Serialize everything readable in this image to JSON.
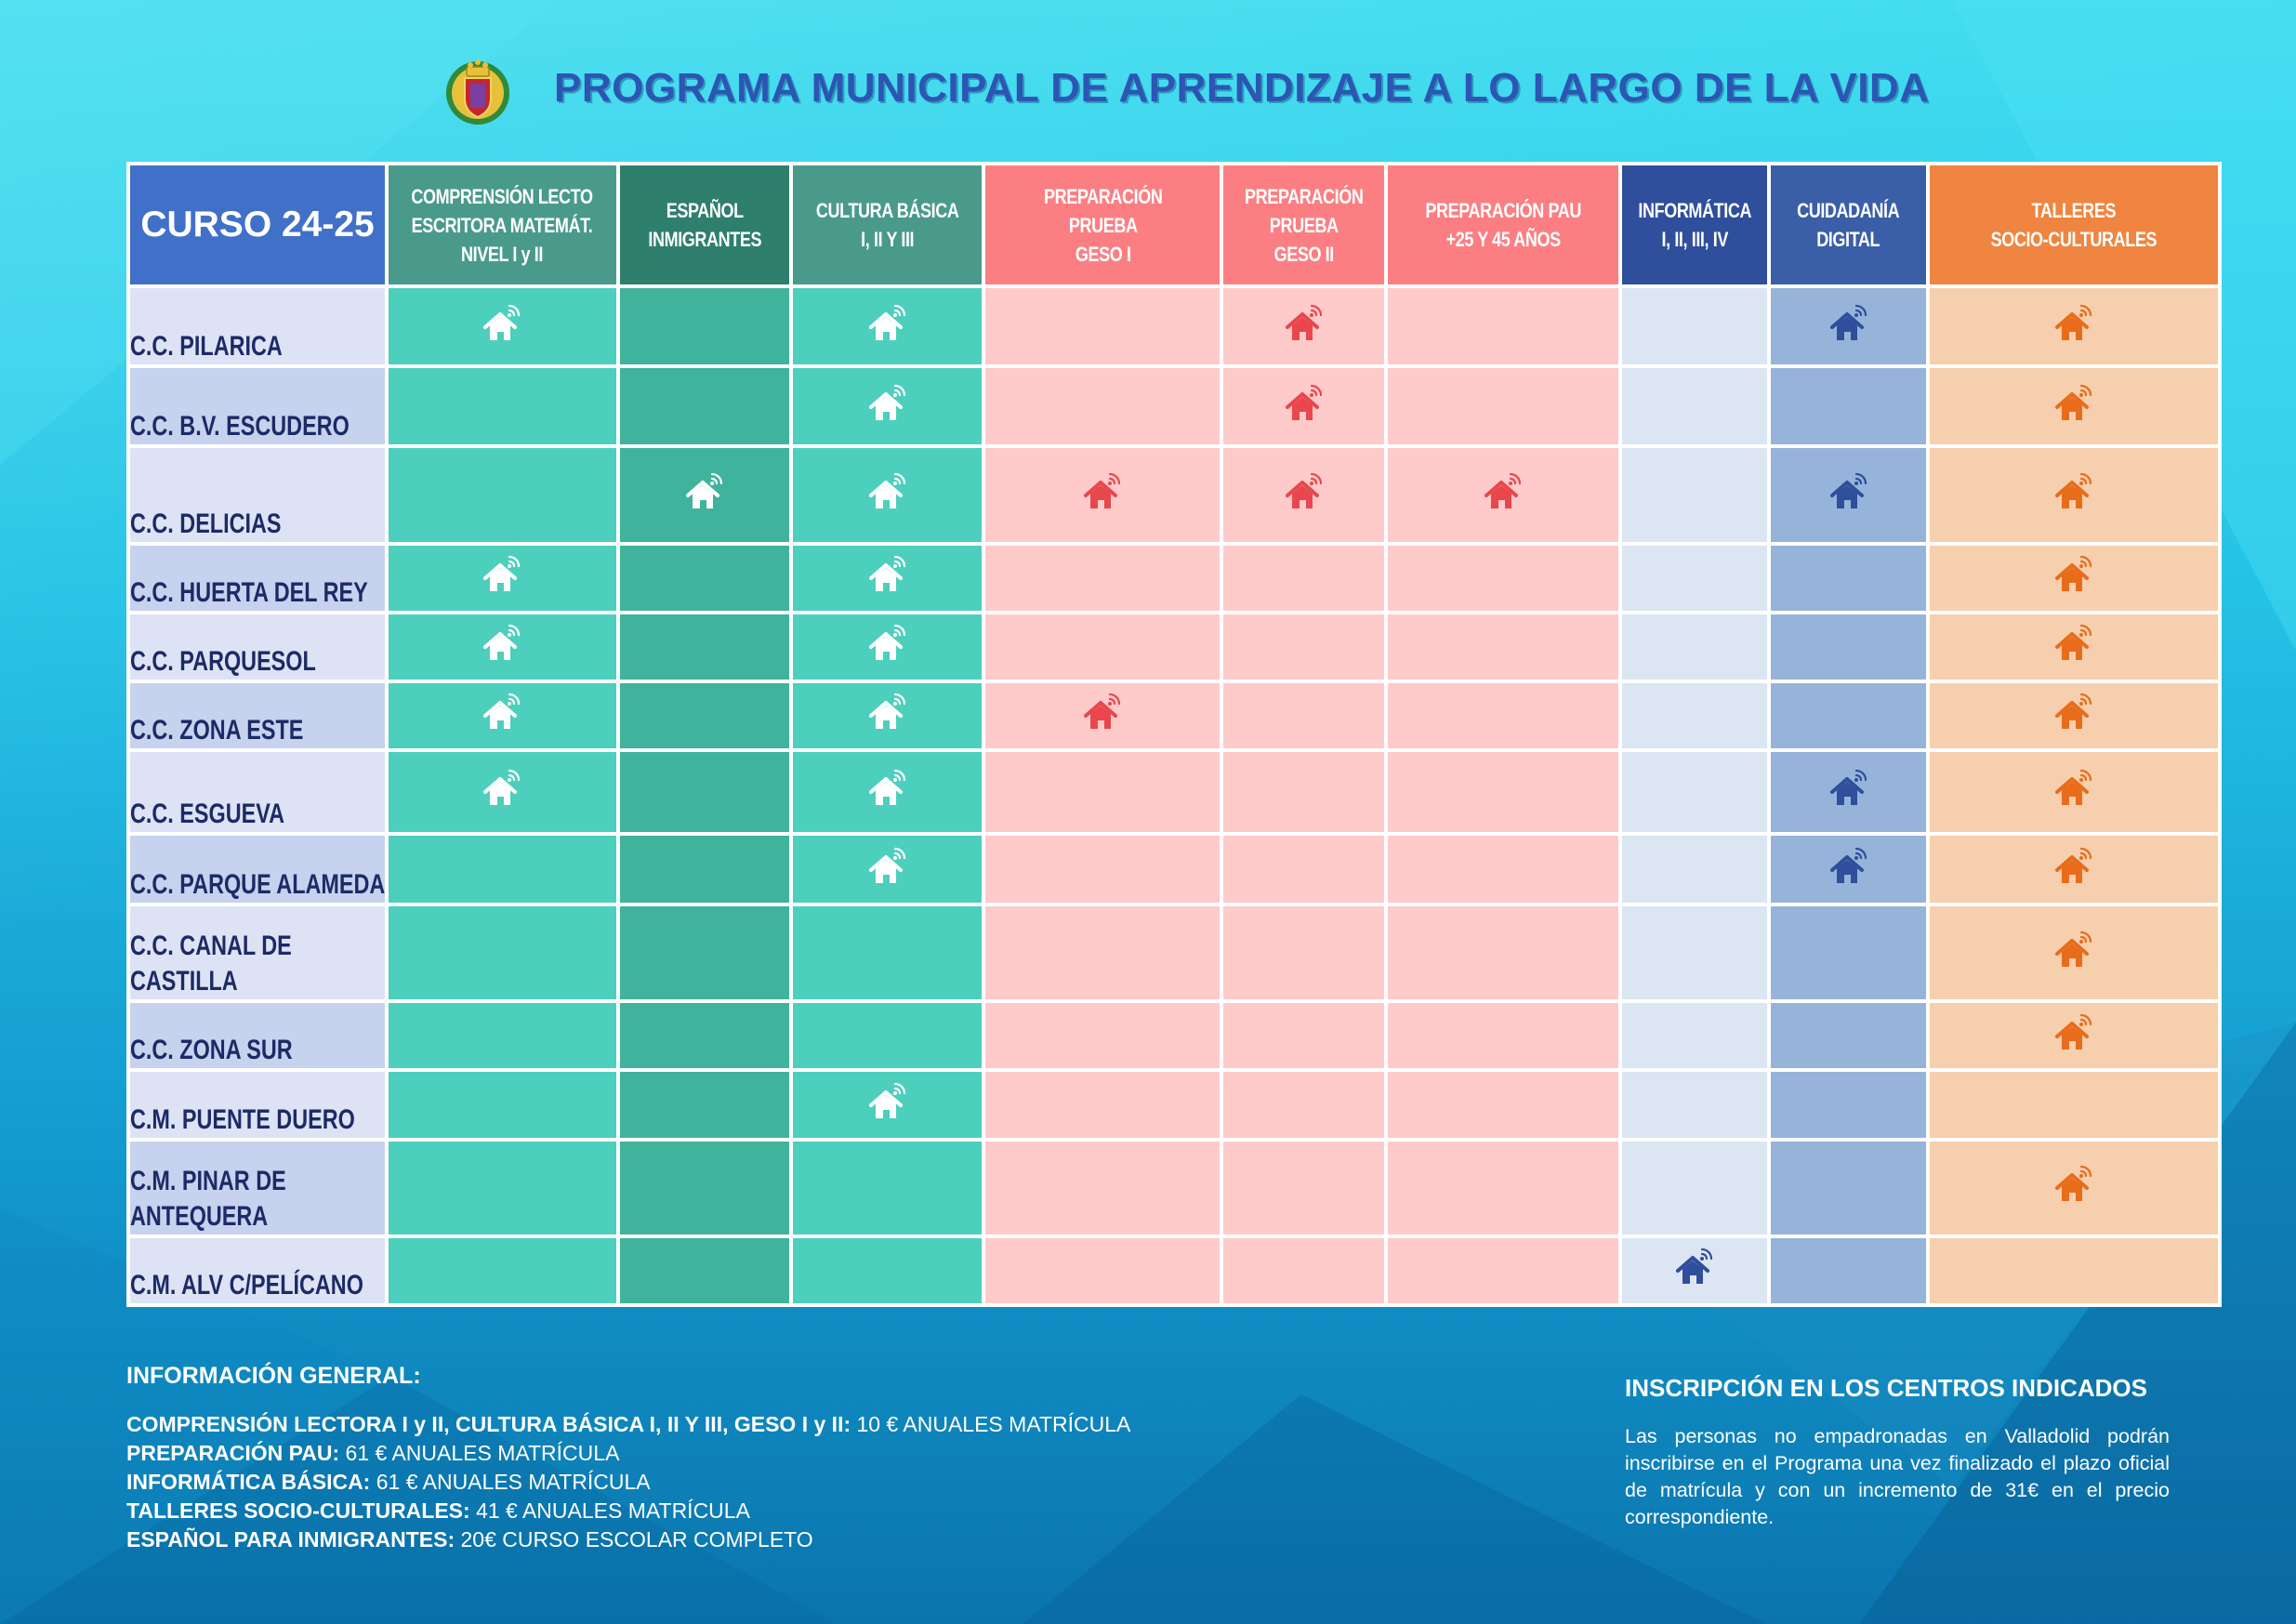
{
  "header": {
    "title": "PROGRAMA MUNICIPAL DE APRENDIZAJE A LO LARGO DE LA VIDA",
    "crest_icon": "valladolid-coat-of-arms"
  },
  "table": {
    "corner_label": "CURSO 24-25",
    "columns": [
      {
        "lines": [
          "COMPRENSIÓN LECTO",
          "ESCRITORA MATEMÁT.",
          "NIVEL I y II"
        ],
        "header_color": "#4a9a8c",
        "cell_color": "#4dcfbd",
        "icon_color": "#ffffff"
      },
      {
        "lines": [
          "ESPAÑOL",
          "INMIGRANTES"
        ],
        "header_color": "#2e7f6b",
        "cell_color": "#3fb39b",
        "icon_color": "#ffffff"
      },
      {
        "lines": [
          "CULTURA BÁSICA",
          "I, II Y III"
        ],
        "header_color": "#4a9a8c",
        "cell_color": "#4dcfbd",
        "icon_color": "#ffffff"
      },
      {
        "lines": [
          "PREPARACIÓN",
          "PRUEBA",
          "GESO I"
        ],
        "header_color": "#fb7f82",
        "cell_color": "#ffcaca",
        "icon_color": "#e8474d"
      },
      {
        "lines": [
          "PREPARACIÓN",
          "PRUEBA",
          "GESO II"
        ],
        "header_color": "#fb7f82",
        "cell_color": "#ffcaca",
        "icon_color": "#e8474d"
      },
      {
        "lines": [
          "PREPARACIÓN PAU",
          "+25 Y 45 AÑOS"
        ],
        "header_color": "#fb7f82",
        "cell_color": "#ffcaca",
        "icon_color": "#e8474d"
      },
      {
        "lines": [
          "INFORMÁTICA",
          "I, II, III, IV"
        ],
        "header_color": "#2f4e9b",
        "cell_color": "#dce6f2",
        "icon_color": "#2f4e9b"
      },
      {
        "lines": [
          "CUIDADANÍA",
          "DIGITAL"
        ],
        "header_color": "#3a5fa6",
        "cell_color": "#96b4d9",
        "icon_color": "#2f4e9b"
      },
      {
        "lines": [
          "TALLERES",
          "SOCIO-CULTURALES"
        ],
        "header_color": "#ef8540",
        "cell_color": "#f6cfae",
        "icon_color": "#e86c1a"
      }
    ],
    "row_label_colors": [
      "#dde3f4",
      "#c6d2ee"
    ],
    "rows": [
      {
        "lines": [
          "C.C. PILARICA"
        ],
        "cells": [
          true,
          false,
          true,
          false,
          true,
          false,
          false,
          true,
          true
        ]
      },
      {
        "lines": [
          "C.C. B.V.  ESCUDERO"
        ],
        "cells": [
          false,
          false,
          true,
          false,
          true,
          false,
          false,
          false,
          true
        ]
      },
      {
        "lines": [
          "C.C. DELICIAS"
        ],
        "cells": [
          false,
          true,
          true,
          true,
          true,
          true,
          false,
          true,
          true
        ]
      },
      {
        "lines": [
          "C.C. HUERTA DEL REY"
        ],
        "cells": [
          true,
          false,
          true,
          false,
          false,
          false,
          false,
          false,
          true
        ]
      },
      {
        "lines": [
          "C.C. PARQUESOL"
        ],
        "cells": [
          true,
          false,
          true,
          false,
          false,
          false,
          false,
          false,
          true
        ]
      },
      {
        "lines": [
          "C.C. ZONA ESTE"
        ],
        "cells": [
          true,
          false,
          true,
          true,
          false,
          false,
          false,
          false,
          true
        ]
      },
      {
        "lines": [
          "C.C. ESGUEVA"
        ],
        "cells": [
          true,
          false,
          true,
          false,
          false,
          false,
          false,
          true,
          true
        ]
      },
      {
        "lines": [
          "C.C. PARQUE ALAMEDA"
        ],
        "cells": [
          false,
          false,
          true,
          false,
          false,
          false,
          false,
          true,
          true
        ]
      },
      {
        "lines": [
          "C.C. CANAL DE",
          "CASTILLA"
        ],
        "cells": [
          false,
          false,
          false,
          false,
          false,
          false,
          false,
          false,
          true
        ]
      },
      {
        "lines": [
          "C.C. ZONA SUR"
        ],
        "cells": [
          false,
          false,
          false,
          false,
          false,
          false,
          false,
          false,
          true
        ]
      },
      {
        "lines": [
          "C.M. PUENTE DUERO"
        ],
        "cells": [
          false,
          false,
          true,
          false,
          false,
          false,
          false,
          false,
          false
        ]
      },
      {
        "lines": [
          "C.M. PINAR DE",
          "ANTEQUERA"
        ],
        "cells": [
          false,
          false,
          false,
          false,
          false,
          false,
          false,
          false,
          true
        ]
      },
      {
        "lines": [
          "C.M.  ALV C/PELÍCANO"
        ],
        "cells": [
          false,
          false,
          false,
          false,
          false,
          false,
          true,
          false,
          false
        ]
      }
    ],
    "icon_name": "wifi-house-icon"
  },
  "info": {
    "title": "INFORMACIÓN GENERAL:",
    "lines": [
      {
        "label": "COMPRENSIÓN LECTORA I y II, CULTURA BÁSICA I, II Y III, GESO I y II:",
        "value": " 10 € ANUALES MATRÍCULA"
      },
      {
        "label": "PREPARACIÓN PAU:",
        "value": " 61 € ANUALES MATRÍCULA"
      },
      {
        "label": "INFORMÁTICA BÁSICA:",
        "value": " 61 € ANUALES MATRÍCULA"
      },
      {
        "label": "TALLERES SOCIO-CULTURALES:",
        "value": " 41 € ANUALES MATRÍCULA"
      },
      {
        "label": "ESPAÑOL PARA INMIGRANTES:",
        "value": " 20€ CURSO ESCOLAR COMPLETO"
      }
    ]
  },
  "inscription": {
    "title": "INSCRIPCIÓN EN LOS CENTROS INDICADOS",
    "text": "Las personas no empadronadas en Valladolid podrán inscribirse en el Programa una vez finalizado el plazo oficial de matrícula y con un incremento de 31€ en el precio correspondiente."
  }
}
